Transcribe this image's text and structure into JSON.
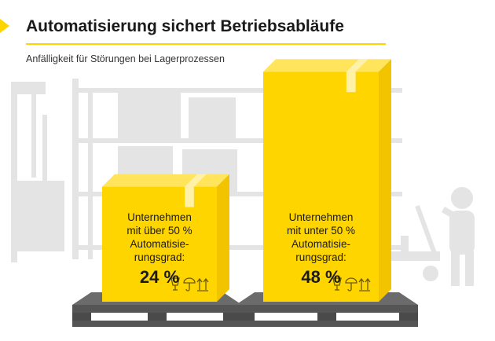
{
  "header": {
    "title": "Automatisierung sichert Betriebsabläufe",
    "subtitle": "Anfälligkeit für Störungen bei Lagerprozessen"
  },
  "colors": {
    "accent": "#ffd500",
    "box_top": "#ffe45c",
    "box_side": "#f2c400",
    "background_art": "#e4e4e4",
    "pallet": "#555555"
  },
  "chart_data": {
    "type": "bar",
    "categories": [
      "Unternehmen mit über 50 % Automatisierungsgrad",
      "Unternehmen mit unter 50 % Automatisierungsgrad"
    ],
    "values": [
      24,
      48
    ],
    "unit": "%",
    "title": "Automatisierung sichert Betriebsabläufe",
    "subtitle": "Anfälligkeit für Störungen bei Lagerprozessen",
    "grid": false,
    "legend": "none"
  },
  "boxes": [
    {
      "line1": "Unternehmen",
      "line2": "mit über 50 %",
      "line3": "Automatisie-",
      "line4": "rungsgrad:",
      "value_label": "24 %"
    },
    {
      "line1": "Unternehmen",
      "line2": "mit unter 50 %",
      "line3": "Automatisie-",
      "line4": "rungsgrad:",
      "value_label": "48 %"
    }
  ],
  "icons": [
    "pallet-icon",
    "shelf-icon",
    "worker-icon",
    "pallet-jack-icon",
    "fragile-icon",
    "umbrella-icon",
    "this-side-up-icon"
  ]
}
